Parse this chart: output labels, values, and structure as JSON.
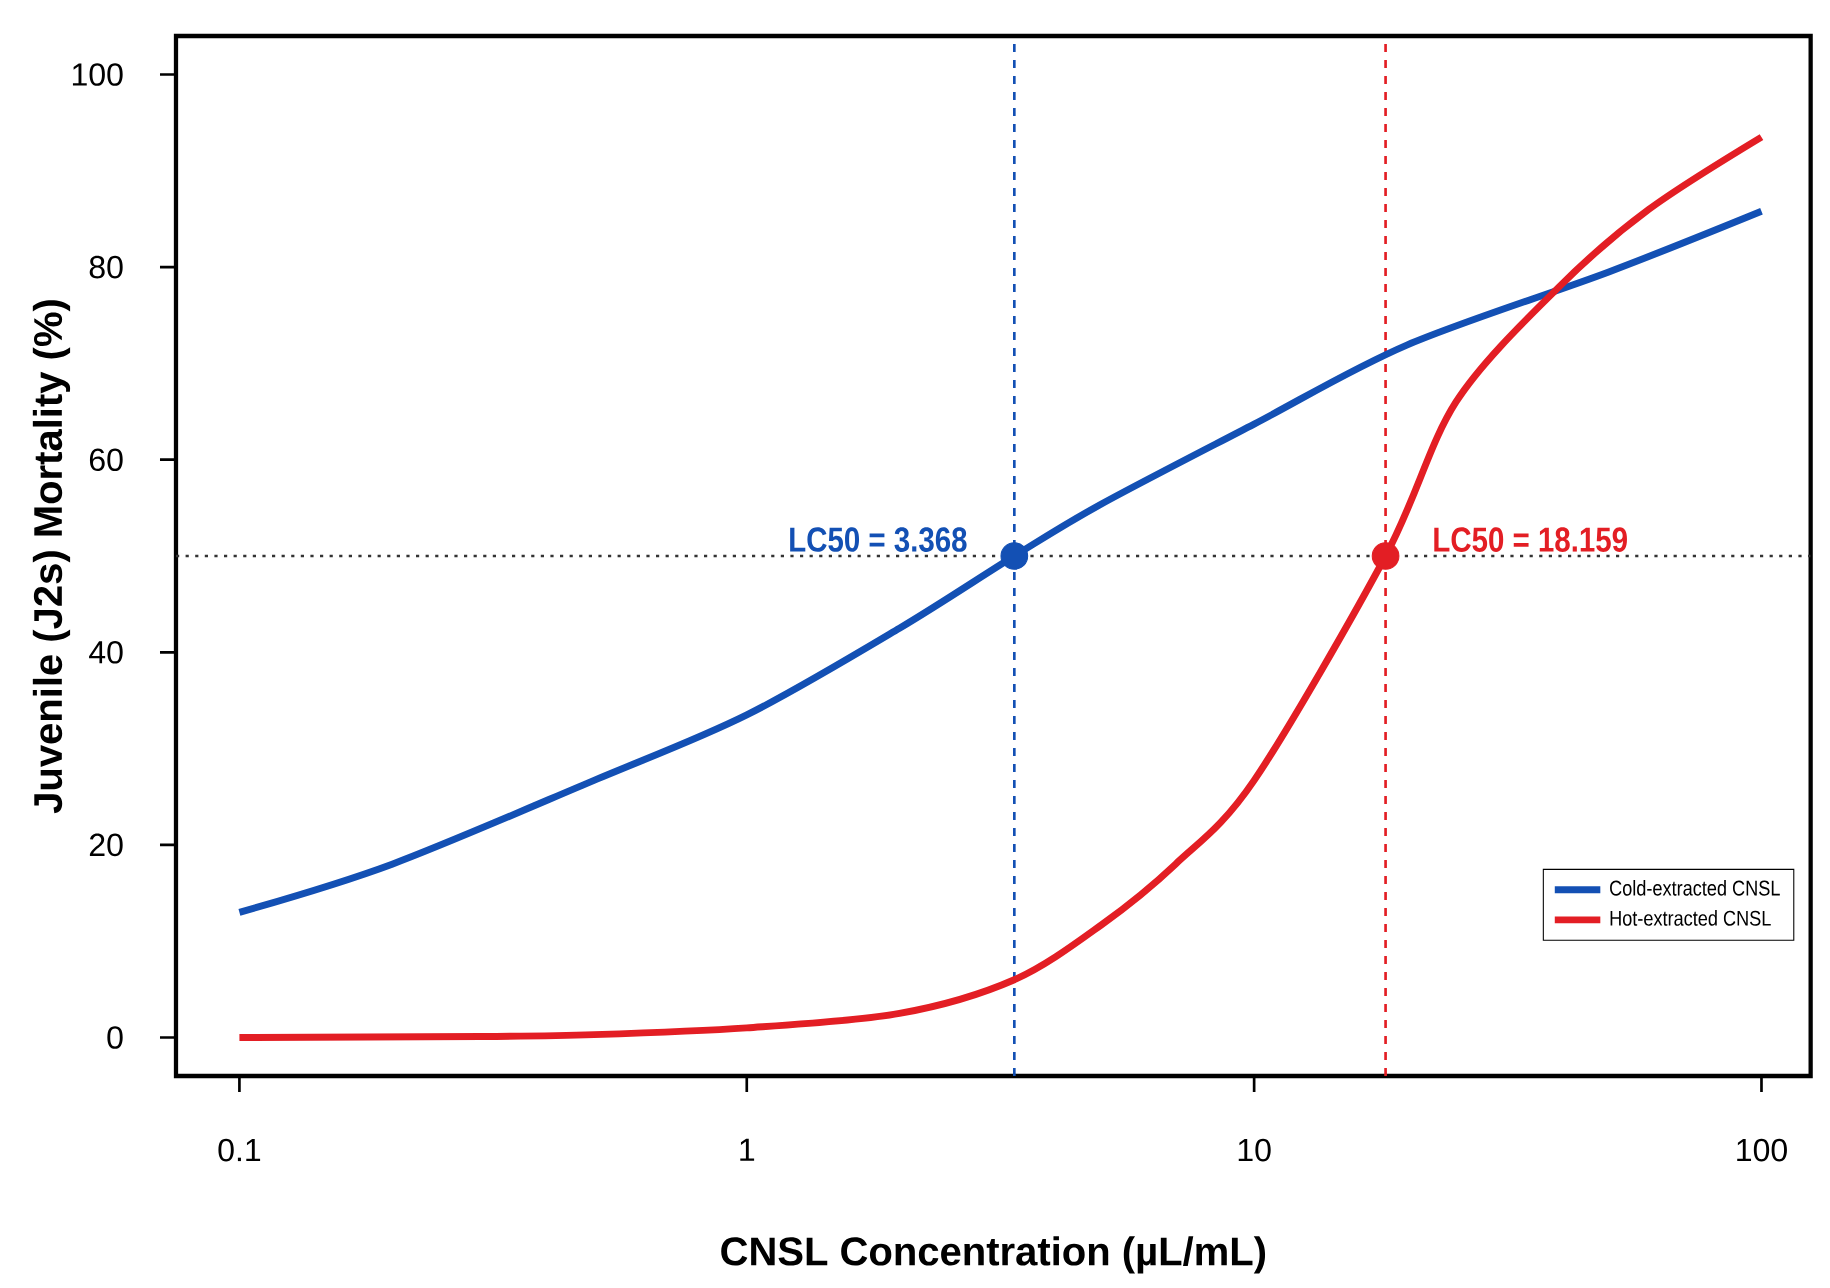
{
  "chart_data": {
    "type": "line",
    "xlabel": "CNSL Concentration (µL/mL)",
    "ylabel": "Juvenile (J2s) Mortality (%)",
    "log": "x",
    "xlim": [
      0.075,
      125
    ],
    "ylim": [
      -4,
      104
    ],
    "xticks": [
      0.1,
      1,
      10,
      100
    ],
    "yticks": [
      0,
      20,
      40,
      60,
      80,
      100
    ],
    "legend": "bottom right",
    "marker": "none",
    "line_style": "solid",
    "series": [
      {
        "name": "Cold-extracted CNSL",
        "color": "#1350b4",
        "x": [
          0.1,
          0.2,
          0.5,
          1,
          2,
          3.368,
          5,
          10,
          20,
          50,
          100
        ],
        "values": [
          13,
          18,
          26.7,
          33.5,
          42.5,
          50,
          55.4,
          63.7,
          71.9,
          79.5,
          85.8
        ]
      },
      {
        "name": "Hot-extracted CNSL",
        "color": "#e31e24",
        "x": [
          0.1,
          0.3,
          0.5,
          1,
          2,
          3.368,
          5,
          7,
          10,
          18.159,
          25,
          40,
          60,
          100
        ],
        "values": [
          0,
          0.1,
          0.3,
          1,
          2.5,
          6,
          11.7,
          18,
          26.7,
          50,
          66,
          78,
          86,
          93.5
        ]
      },
      {
        "type": "scatter",
        "marker": "circle",
        "x": [
          3.368,
          18.159
        ],
        "values": [
          50,
          50
        ],
        "colors": [
          "#1350b4",
          "#e31e24"
        ]
      }
    ],
    "ref_lines": [
      {
        "axis": "y",
        "value": 50,
        "color": "#333333",
        "line_style": "dotted"
      },
      {
        "axis": "x",
        "value": 3.368,
        "color": "#1350b4",
        "line_style": "dashed"
      },
      {
        "axis": "x",
        "value": 18.159,
        "color": "#e31e24",
        "line_style": "dashed"
      }
    ],
    "annotations": [
      {
        "text": "LC50 = 3.368",
        "x": 3.368,
        "y": 50
      },
      {
        "text": "LC50 = 18.159",
        "x": 18.159,
        "y": 50
      }
    ]
  }
}
